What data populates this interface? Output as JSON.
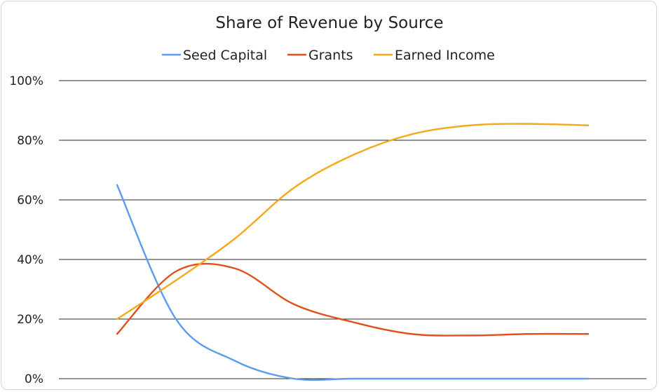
{
  "chart_data": {
    "type": "line",
    "title": "Share of Revenue by Source",
    "xlabel": "",
    "ylabel": "",
    "x": [
      1,
      2,
      3,
      4,
      5,
      6,
      7,
      8,
      9
    ],
    "ylim": [
      0,
      100
    ],
    "yticks": [
      "0%",
      "20%",
      "40%",
      "60%",
      "80%",
      "100%"
    ],
    "ytick_values": [
      0,
      20,
      40,
      60,
      80,
      100
    ],
    "grid": true,
    "legend_position": "top-center",
    "series": [
      {
        "name": "Seed Capital",
        "color": "#5b9bf0",
        "values": [
          65,
          20,
          6,
          0,
          0,
          0,
          0,
          0,
          0
        ]
      },
      {
        "name": "Grants",
        "color": "#e0501a",
        "values": [
          15,
          36,
          37,
          25,
          19,
          15,
          14.5,
          15,
          15
        ]
      },
      {
        "name": "Earned Income",
        "color": "#f5a818",
        "values": [
          20,
          33,
          47,
          64,
          75,
          82,
          85,
          85.5,
          85
        ]
      }
    ]
  }
}
